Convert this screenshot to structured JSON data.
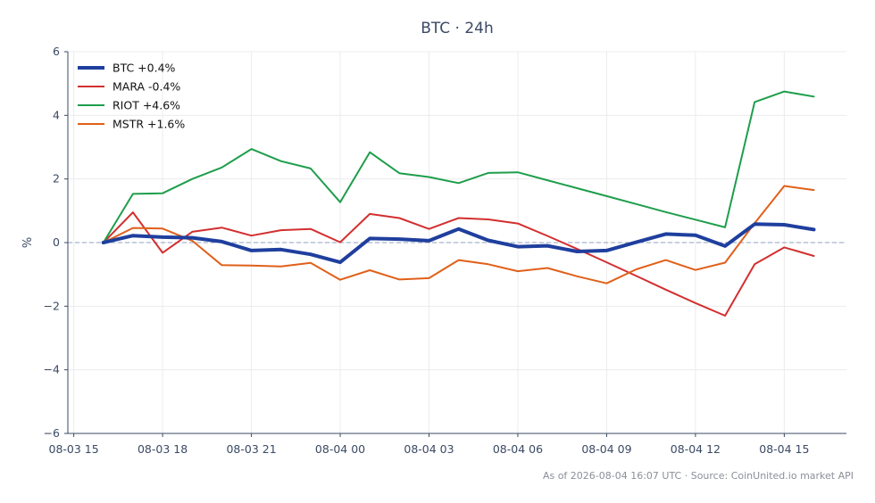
{
  "chart_data": {
    "type": "line",
    "title": "BTC · 24h",
    "xlabel": "",
    "ylabel": "%",
    "ylim": [
      -6,
      6
    ],
    "x_ticks": [
      "08-03 15",
      "08-03 18",
      "08-03 21",
      "08-04 00",
      "08-04 03",
      "08-04 06",
      "08-04 09",
      "08-04 12",
      "08-04 15"
    ],
    "y_ticks": [
      "6",
      "4",
      "2",
      "0",
      "−2",
      "−4",
      "−6"
    ],
    "y_tick_values": [
      6,
      4,
      2,
      0,
      -2,
      -4,
      -6
    ],
    "x_tick_hours": [
      0,
      3,
      6,
      9,
      12,
      15,
      18,
      21,
      24
    ],
    "x_range_hours": [
      -0.2,
      26.1
    ],
    "x_hours": [
      1,
      2,
      3,
      4,
      5,
      6,
      7,
      8,
      9,
      10,
      11,
      12,
      13,
      14,
      15,
      16,
      17,
      18,
      19,
      20,
      21,
      22,
      23,
      24,
      25
    ],
    "reference_line": 0,
    "grid": true,
    "legend_position": "top-left",
    "series": [
      {
        "name": "BTC +0.4%",
        "color": "#1f3f9e",
        "width": 4,
        "values": [
          0.0,
          0.22,
          0.17,
          0.15,
          0.03,
          -0.25,
          -0.22,
          -0.37,
          -0.62,
          0.13,
          0.11,
          0.06,
          0.43,
          0.07,
          -0.13,
          -0.1,
          -0.28,
          -0.25,
          0.01,
          0.27,
          0.23,
          -0.11,
          0.58,
          0.56,
          0.41
        ]
      },
      {
        "name": "MARA -0.4%",
        "color": "#d32f2f",
        "width": 2,
        "values": [
          0.0,
          0.95,
          -0.32,
          0.34,
          0.47,
          0.22,
          0.39,
          0.43,
          0.01,
          0.9,
          0.77,
          0.43,
          0.77,
          0.73,
          0.6,
          0.21,
          -0.2,
          -0.62,
          -1.05,
          -1.48,
          -1.9,
          -2.3,
          -0.68,
          -0.15,
          -0.42
        ]
      },
      {
        "name": "RIOT +4.6%",
        "color": "#1e9e4b",
        "width": 2,
        "values": [
          0.0,
          1.53,
          1.55,
          2.0,
          2.36,
          2.94,
          2.56,
          2.33,
          1.27,
          2.84,
          2.18,
          2.06,
          1.87,
          2.19,
          2.21,
          1.96,
          1.71,
          1.46,
          1.21,
          0.96,
          0.72,
          0.48,
          4.42,
          4.75,
          4.59
        ]
      },
      {
        "name": "MSTR +1.6%",
        "color": "#e0601a",
        "width": 2,
        "values": [
          0.0,
          0.46,
          0.44,
          0.06,
          -0.71,
          -0.72,
          -0.75,
          -0.64,
          -1.17,
          -0.87,
          -1.16,
          -1.12,
          -0.55,
          -0.68,
          -0.9,
          -0.8,
          -1.06,
          -1.28,
          -0.84,
          -0.55,
          -0.86,
          -0.63,
          0.61,
          1.78,
          1.65
        ]
      }
    ]
  },
  "footer": "As of 2026-08-04 16:07 UTC · Source: CoinUnited.io market API"
}
